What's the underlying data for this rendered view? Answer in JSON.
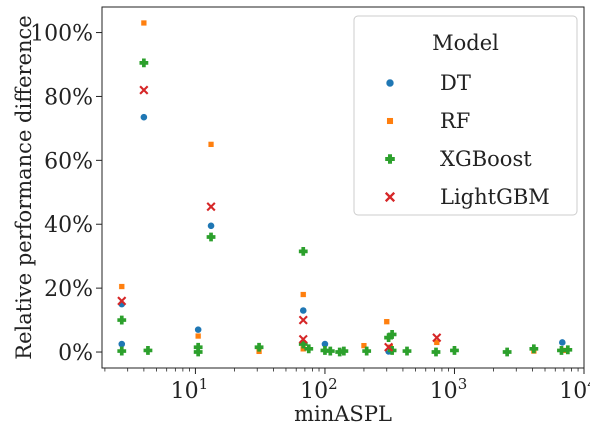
{
  "chart_data": {
    "type": "scatter",
    "xlabel": "minASPL",
    "ylabel": "Relative performance difference",
    "xscale": "log",
    "xlim": [
      1.9,
      10000
    ],
    "ylim": [
      -5,
      108
    ],
    "x_ticks": [
      {
        "value": 10,
        "base": "10",
        "exp": "1"
      },
      {
        "value": 100,
        "base": "10",
        "exp": "2"
      },
      {
        "value": 1000,
        "base": "10",
        "exp": "3"
      },
      {
        "value": 10000,
        "base": "10",
        "exp": "4"
      }
    ],
    "y_ticks": [
      {
        "value": 0,
        "label": "0%"
      },
      {
        "value": 20,
        "label": "20%"
      },
      {
        "value": 40,
        "label": "40%"
      },
      {
        "value": 60,
        "label": "60%"
      },
      {
        "value": 80,
        "label": "80%"
      },
      {
        "value": 100,
        "label": "100%"
      }
    ],
    "legend": {
      "title": "Model",
      "position": "top-right"
    },
    "series": [
      {
        "name": "DT",
        "marker": "circle",
        "color": "#1f77b4",
        "points": [
          [
            2.7,
            2.5
          ],
          [
            2.7,
            15
          ],
          [
            4.0,
            73.5
          ],
          [
            10.5,
            7
          ],
          [
            13.2,
            39.5
          ],
          [
            68,
            13
          ],
          [
            100,
            2.5
          ],
          [
            310,
            0.2
          ],
          [
            6800,
            3
          ]
        ]
      },
      {
        "name": "RF",
        "marker": "square",
        "color": "#ff7f0e",
        "points": [
          [
            2.7,
            20.5
          ],
          [
            4.0,
            103
          ],
          [
            10.5,
            5
          ],
          [
            13.2,
            65
          ],
          [
            31,
            0.2
          ],
          [
            68,
            18
          ],
          [
            68,
            1
          ],
          [
            200,
            2
          ],
          [
            300,
            9.5
          ],
          [
            320,
            1.5
          ],
          [
            730,
            3
          ],
          [
            4100,
            0.3
          ],
          [
            7000,
            0.5
          ]
        ]
      },
      {
        "name": "XGBoost",
        "marker": "plus",
        "color": "#2ca02c",
        "points": [
          [
            2.7,
            10
          ],
          [
            2.7,
            0.3
          ],
          [
            4.0,
            90.5
          ],
          [
            4.3,
            0.5
          ],
          [
            10.5,
            1.5
          ],
          [
            10.5,
            0
          ],
          [
            13.2,
            36
          ],
          [
            31,
            1.5
          ],
          [
            68,
            31.5
          ],
          [
            68,
            2.5
          ],
          [
            75,
            1
          ],
          [
            100,
            0.5
          ],
          [
            110,
            0.3
          ],
          [
            130,
            0
          ],
          [
            140,
            0.3
          ],
          [
            210,
            0.3
          ],
          [
            310,
            4.5
          ],
          [
            330,
            5.5
          ],
          [
            330,
            0.5
          ],
          [
            430,
            0.3
          ],
          [
            720,
            0
          ],
          [
            1000,
            0.5
          ],
          [
            2550,
            0
          ],
          [
            4100,
            1
          ],
          [
            6700,
            0.5
          ],
          [
            7500,
            0.7
          ]
        ]
      },
      {
        "name": "LightGBM",
        "marker": "x",
        "color": "#d62728",
        "points": [
          [
            2.7,
            16
          ],
          [
            4.0,
            82
          ],
          [
            13.2,
            45.5
          ],
          [
            68,
            10
          ],
          [
            68,
            4
          ],
          [
            310,
            1.5
          ],
          [
            730,
            4.5
          ]
        ]
      }
    ]
  }
}
